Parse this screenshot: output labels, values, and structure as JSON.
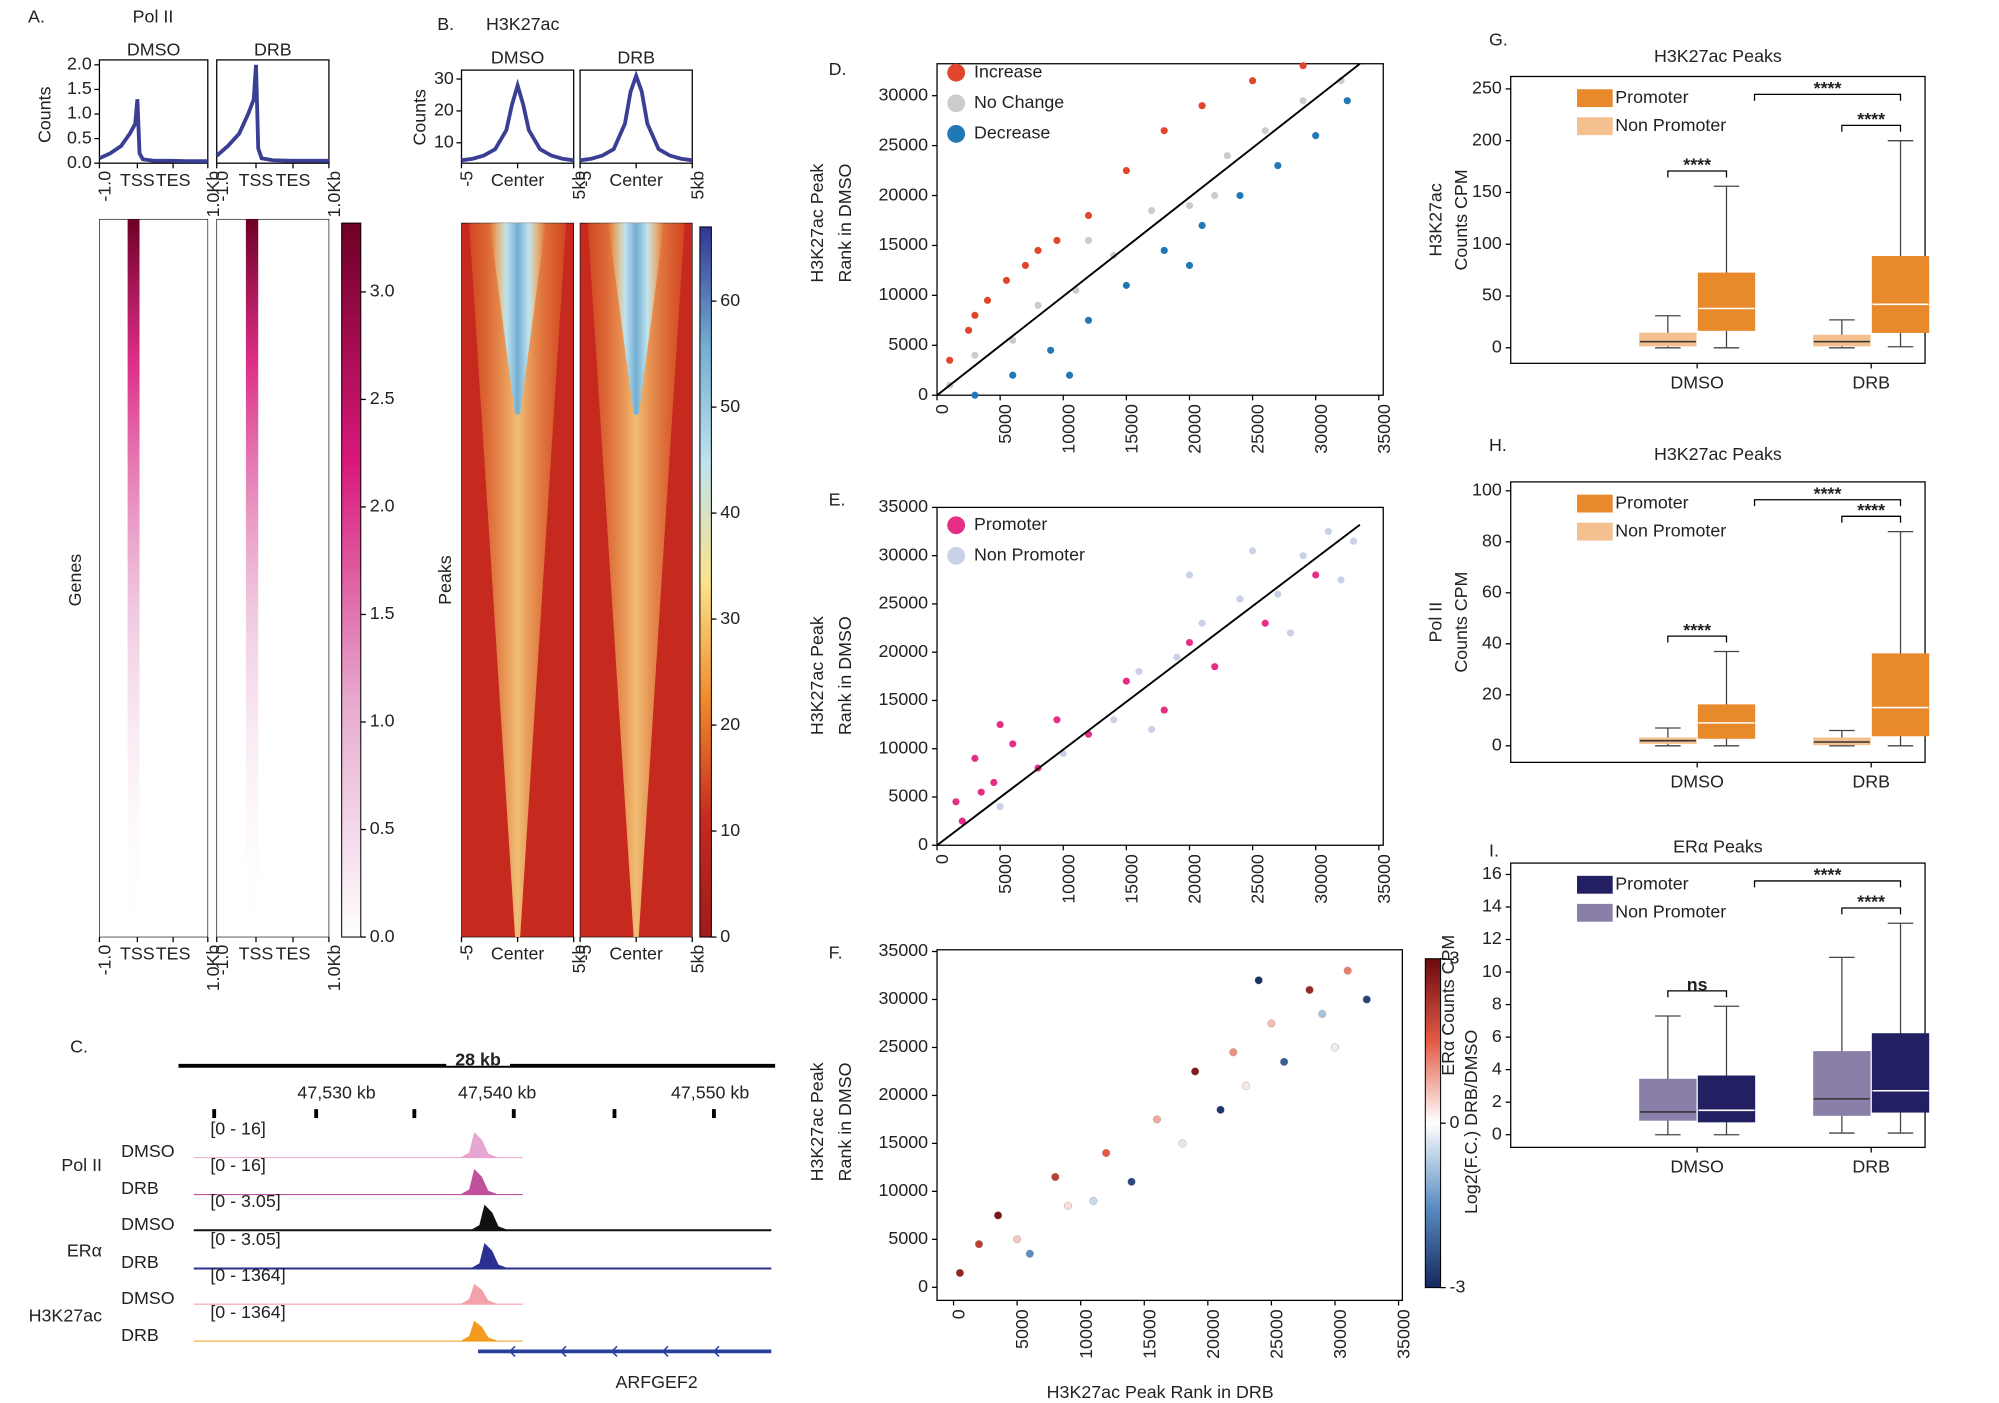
{
  "chart_data": [
    {
      "panel": "A.",
      "type": "profile-heatmap",
      "title": "Pol II",
      "ylabel": "Counts",
      "heatmap_ylabel": "Genes",
      "x": [
        0,
        10,
        20,
        28,
        33,
        35,
        37,
        40,
        50,
        67,
        80,
        100
      ],
      "xlim": [
        0,
        100
      ],
      "xticks": [
        {
          "value": 0,
          "label": "-1.0"
        },
        {
          "value": 35,
          "label": "TSS"
        },
        {
          "value": 68,
          "label": "TES"
        },
        {
          "value": 100,
          "label": "1.0Kb"
        }
      ],
      "ylim": [
        0,
        2.1
      ],
      "yticks": [
        {
          "value": 0,
          "label": "0.0"
        },
        {
          "value": 0.5,
          "label": "0.5"
        },
        {
          "value": 1,
          "label": "1.0"
        },
        {
          "value": 1.5,
          "label": "1.5"
        },
        {
          "value": 2,
          "label": "2.0"
        }
      ],
      "series": [
        {
          "name": "DMSO",
          "color": "#3a3f94",
          "values": [
            0.1,
            0.2,
            0.35,
            0.6,
            0.8,
            1.3,
            0.2,
            0.08,
            0.05,
            0.05,
            0.04,
            0.04
          ]
        },
        {
          "name": "DRB",
          "color": "#3a3f94",
          "values": [
            0.15,
            0.35,
            0.6,
            1.0,
            1.3,
            2.0,
            0.3,
            0.1,
            0.06,
            0.05,
            0.05,
            0.05
          ]
        }
      ],
      "colormap": [
        "#ffffff",
        "#e6a8cd",
        "#d9187a",
        "#6e0026"
      ],
      "clim": [
        0,
        3.32
      ],
      "cticks": [
        {
          "value": 0,
          "label": "0.0"
        },
        {
          "value": 0.5,
          "label": "0.5"
        },
        {
          "value": 1,
          "label": "1.0"
        },
        {
          "value": 1.5,
          "label": "1.5"
        },
        {
          "value": 2,
          "label": "2.0"
        },
        {
          "value": 2.5,
          "label": "2.5"
        },
        {
          "value": 3,
          "label": "3.0"
        }
      ]
    },
    {
      "panel": "B.",
      "type": "profile-heatmap",
      "title": "H3K27ac",
      "ylabel": "Counts",
      "heatmap_ylabel": "Peaks",
      "x": [
        -5,
        -4,
        -3,
        -2,
        -1,
        -0.5,
        0,
        0.5,
        1,
        2,
        3,
        4,
        5
      ],
      "xlim": [
        -5,
        5
      ],
      "xticks": [
        -5,
        {
          "value": 0,
          "label": "Center"
        },
        {
          "value": 5,
          "label": "5kb"
        }
      ],
      "ylim": [
        3.6,
        32.8
      ],
      "yticks": [
        10,
        20,
        30
      ],
      "series": [
        {
          "name": "DMSO",
          "color": "#3a3f94",
          "values": [
            4.5,
            5,
            6,
            8,
            14,
            22,
            28,
            22,
            14,
            8,
            6,
            5,
            4.5
          ]
        },
        {
          "name": "DRB",
          "color": "#3a3f94",
          "values": [
            4.5,
            5,
            6,
            8,
            16,
            26,
            31,
            26,
            16,
            8,
            6,
            5,
            4.5
          ]
        }
      ],
      "colormap": [
        "#a01b1b",
        "#c62a1f",
        "#f08a2c",
        "#fbe38a",
        "#bfe3ee",
        "#74add1",
        "#313695"
      ],
      "clim": [
        0,
        67
      ],
      "cticks": [
        0,
        10,
        20,
        30,
        40,
        50,
        60
      ]
    },
    {
      "panel": "C.",
      "type": "tracks",
      "scale_label": "28 kb",
      "coordinates": [
        "47,530 kb",
        "47,540 kb",
        "47,550 kb"
      ],
      "groups": [
        {
          "name": "Pol II",
          "tracks": [
            {
              "name": "DMSO",
              "range": "[0 - 16]",
              "color": "#e7a6cf"
            },
            {
              "name": "DRB",
              "range": "[0 - 16]",
              "color": "#c0509c"
            }
          ]
        },
        {
          "name": "ERα",
          "tracks": [
            {
              "name": "DMSO",
              "range": "[0 - 3.05]",
              "color": "#111111"
            },
            {
              "name": "DRB",
              "range": "[0 - 3.05]",
              "color": "#2b2f8f"
            }
          ]
        },
        {
          "name": "H3K27ac",
          "tracks": [
            {
              "name": "DMSO",
              "range": "[0 - 1364]",
              "color": "#f2a2a8"
            },
            {
              "name": "DRB",
              "range": "[0 - 1364]",
              "color": "#f39b1f"
            }
          ]
        }
      ],
      "gene": {
        "name": "ARFGEF2",
        "color": "#2a3f9c"
      }
    },
    {
      "panel": "D.",
      "type": "scatter",
      "ylabel": [
        "H3K27ac Peak",
        "Rank in DMSO"
      ],
      "xlim": [
        0,
        35350
      ],
      "xticks": [
        0,
        5000,
        10000,
        15000,
        20000,
        25000,
        30000,
        35000
      ],
      "ylim": [
        0,
        33200
      ],
      "yticks": [
        0,
        5000,
        10000,
        15000,
        20000,
        25000,
        30000
      ],
      "diagonal": {
        "x": [
          0,
          33500
        ],
        "y": [
          0,
          33200
        ]
      },
      "series": [
        {
          "name": "Increase",
          "color": "#e0462b",
          "x": [
            1000,
            2500,
            4000,
            5500,
            7000,
            9500,
            12000,
            15000,
            18000,
            21000,
            25000,
            29000,
            3000,
            8000
          ],
          "y": [
            3500,
            6500,
            9500,
            11500,
            13000,
            15500,
            18000,
            22500,
            26500,
            29000,
            31500,
            33000,
            8000,
            14500
          ]
        },
        {
          "name": "No Change",
          "color": "#cccccc",
          "x": [
            1000,
            3000,
            6000,
            8000,
            11000,
            14000,
            17000,
            20000,
            23000,
            26000,
            29000,
            32000,
            12000,
            22000
          ],
          "y": [
            1000,
            4000,
            5500,
            9000,
            10500,
            14000,
            18500,
            19000,
            24000,
            26500,
            29500,
            31500,
            15500,
            20000
          ]
        },
        {
          "name": "Decrease",
          "color": "#2078b4",
          "x": [
            3000,
            6000,
            9000,
            12000,
            15000,
            18000,
            21000,
            24000,
            27000,
            30000,
            32500,
            10500,
            20000
          ],
          "y": [
            0,
            2000,
            4500,
            7500,
            11000,
            14500,
            17000,
            20000,
            23000,
            26000,
            29500,
            2000,
            13000
          ]
        }
      ]
    },
    {
      "panel": "E.",
      "type": "scatter",
      "ylabel": [
        "H3K27ac Peak",
        "Rank in DMSO"
      ],
      "xlim": [
        0,
        35350
      ],
      "xticks": [
        0,
        5000,
        10000,
        15000,
        20000,
        25000,
        30000,
        35000
      ],
      "ylim": [
        0,
        35000
      ],
      "yticks": [
        0,
        5000,
        10000,
        15000,
        20000,
        25000,
        30000,
        35000
      ],
      "diagonal": {
        "x": [
          0,
          33500
        ],
        "y": [
          0,
          33200
        ]
      },
      "series": [
        {
          "name": "Promoter",
          "color": "#e52f87",
          "x": [
            1500,
            3000,
            2000,
            4500,
            6000,
            8000,
            9500,
            12000,
            15000,
            18000,
            20000,
            22000,
            26000,
            30000,
            5000,
            3500
          ],
          "y": [
            4500,
            9000,
            2500,
            6500,
            10500,
            8000,
            13000,
            11500,
            17000,
            14000,
            21000,
            18500,
            23000,
            28000,
            12500,
            5500
          ]
        },
        {
          "name": "Non Promoter",
          "color": "#c9d1e6",
          "x": [
            5000,
            10000,
            14000,
            16000,
            19000,
            21000,
            24000,
            27000,
            29000,
            31000,
            33000,
            25000,
            20000,
            28000,
            32000,
            17000
          ],
          "y": [
            4000,
            9500,
            13000,
            18000,
            19500,
            23000,
            25500,
            26000,
            30000,
            32500,
            31500,
            30500,
            28000,
            22000,
            27500,
            12000
          ]
        }
      ]
    },
    {
      "panel": "F.",
      "type": "scatter-color",
      "ylabel": [
        "H3K27ac Peak",
        "Rank in DMSO"
      ],
      "xlabel": "H3K27ac Peak Rank in DRB",
      "xlim": [
        -1300,
        35300
      ],
      "xticks": [
        0,
        5000,
        10000,
        15000,
        20000,
        25000,
        30000,
        35000
      ],
      "ylim": [
        -1360,
        35180
      ],
      "yticks": [
        0,
        5000,
        10000,
        15000,
        20000,
        25000,
        30000,
        35000
      ],
      "colormap": [
        "#14285e",
        "#5b8fc4",
        "#ffffff",
        "#e35a45",
        "#6b0a0f"
      ],
      "clim": [
        -3,
        3
      ],
      "cticks": [
        -3,
        0,
        3
      ],
      "clabel": "Log2(F.C.) DRB/DMSO",
      "points": {
        "x": [
          500,
          2000,
          3500,
          5000,
          6000,
          8000,
          9000,
          11000,
          12000,
          14000,
          16000,
          18000,
          19000,
          21000,
          22000,
          23000,
          25000,
          26000,
          28000,
          29000,
          31000,
          32500,
          30000,
          24000
        ],
        "y": [
          1500,
          4500,
          7500,
          5000,
          3500,
          11500,
          8500,
          9000,
          14000,
          11000,
          17500,
          15000,
          22500,
          18500,
          24500,
          21000,
          27500,
          23500,
          31000,
          28500,
          33000,
          30000,
          25000,
          32000
        ],
        "fc": [
          2.5,
          2,
          2.8,
          0.5,
          -1.5,
          2,
          0.3,
          -0.5,
          1.5,
          -2.5,
          0.8,
          -0.3,
          2.7,
          -2.8,
          1,
          0.2,
          0.6,
          -2.2,
          2.4,
          -0.8,
          1.2,
          -2.6,
          -0.2,
          -2.9
        ]
      }
    },
    {
      "panel": "G.",
      "type": "box",
      "title": "H3K27ac Peaks",
      "ylabel": [
        "H3K27ac",
        "Counts CPM"
      ],
      "categories": [
        "DMSO",
        "DRB"
      ],
      "ylim": [
        -15,
        262
      ],
      "yticks": [
        0,
        50,
        100,
        150,
        200,
        250
      ],
      "series": [
        {
          "name": "Promoter",
          "color": "#e8892b",
          "stats": [
            [
              0,
              17,
              38,
              72,
              156
            ],
            [
              1,
              15,
              42,
              88,
              200
            ]
          ]
        },
        {
          "name": "Non Promoter",
          "color": "#f5c08f",
          "stats": [
            [
              0,
              2,
              6,
              14,
              31
            ],
            [
              0,
              2,
              6,
              12,
              27
            ]
          ]
        }
      ],
      "annotations": [
        "****",
        "****",
        "****"
      ]
    },
    {
      "panel": "H.",
      "type": "box",
      "title": "H3K27ac Peaks",
      "ylabel": [
        "Pol II",
        "Counts CPM"
      ],
      "categories": [
        "DMSO",
        "DRB"
      ],
      "ylim": [
        -6.5,
        103.5
      ],
      "yticks": [
        0,
        20,
        40,
        60,
        80,
        100
      ],
      "series": [
        {
          "name": "Promoter",
          "color": "#e8892b",
          "stats": [
            [
              0,
              3,
              9,
              16,
              37
            ],
            [
              0,
              4,
              15,
              36,
              84
            ]
          ]
        },
        {
          "name": "Non Promoter",
          "color": "#f5c08f",
          "stats": [
            [
              0,
              1,
              2,
              3,
              7
            ],
            [
              0,
              0.5,
              1.5,
              3,
              6
            ]
          ]
        }
      ],
      "annotations": [
        "****",
        "****",
        "****"
      ]
    },
    {
      "panel": "I.",
      "type": "box",
      "title": "ERα Peaks",
      "ylabel": [
        "ERα  Counts CPM"
      ],
      "categories": [
        "DMSO",
        "DRB"
      ],
      "ylim": [
        -0.78,
        16.7
      ],
      "yticks": [
        0,
        2,
        4,
        6,
        8,
        10,
        12,
        14,
        16
      ],
      "series": [
        {
          "name": "Promoter",
          "color": "#231f63",
          "stats": [
            [
              0,
              0.8,
              1.5,
              3.6,
              7.9
            ],
            [
              0.1,
              1.4,
              2.7,
              6.2,
              13
            ]
          ]
        },
        {
          "name": "Non Promoter",
          "color": "#8a7fa8",
          "stats": [
            [
              0,
              0.9,
              1.4,
              3.4,
              7.3
            ],
            [
              0.1,
              1.2,
              2.2,
              5.1,
              10.9
            ]
          ]
        }
      ],
      "annotations": [
        "ns",
        "****",
        "****"
      ]
    }
  ]
}
